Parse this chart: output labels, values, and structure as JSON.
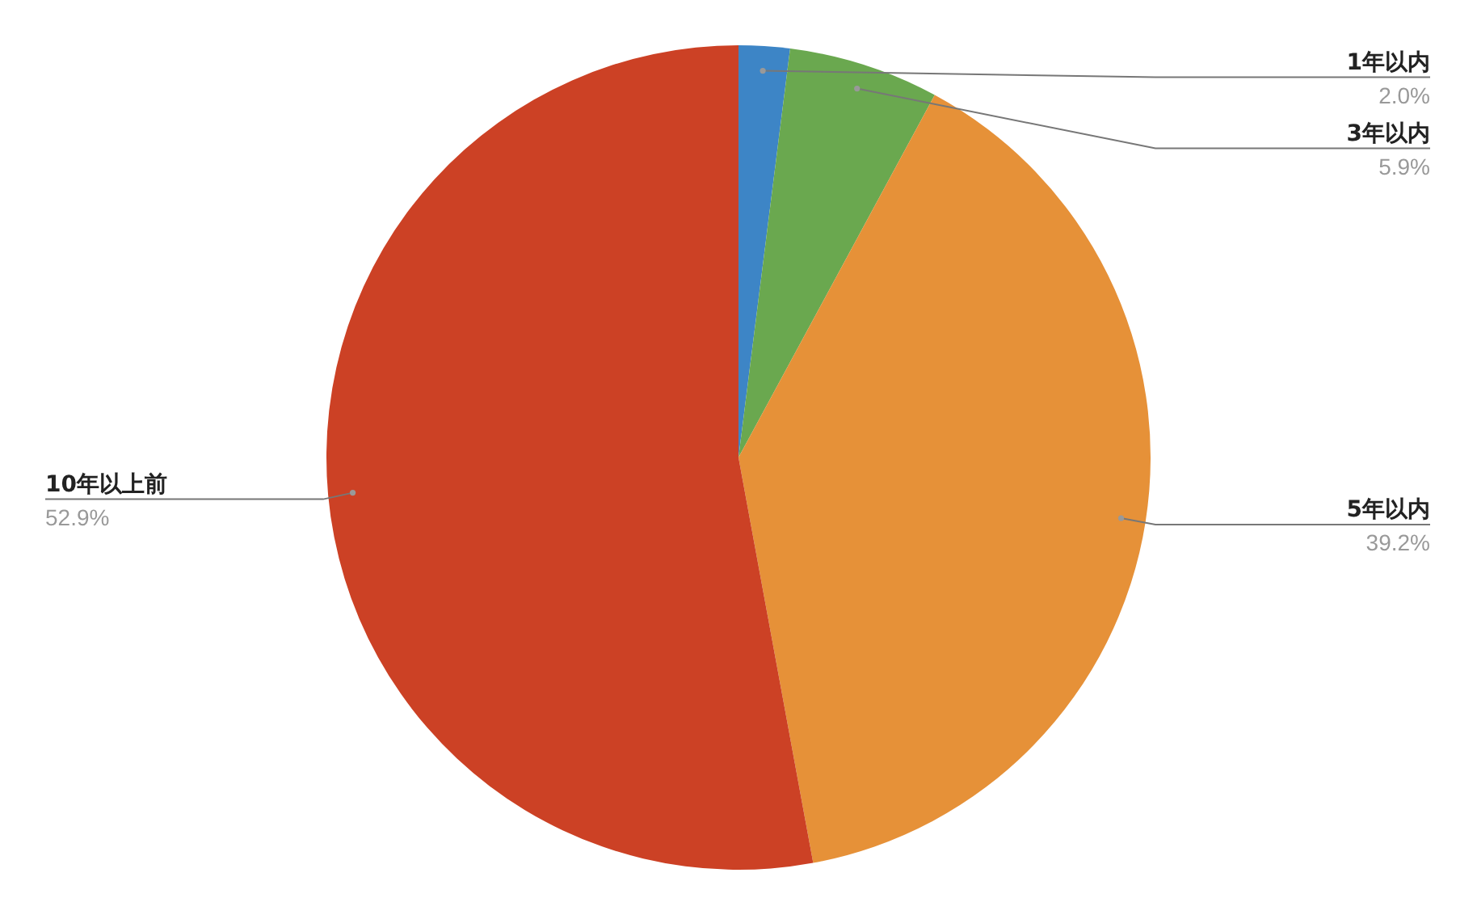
{
  "chart_data": {
    "type": "pie",
    "categories": [
      "1年以内",
      "3年以内",
      "5年以内",
      "10年以上前"
    ],
    "values": [
      2.0,
      5.9,
      39.2,
      52.9
    ],
    "colors": [
      "#3d85c6",
      "#6aa84f",
      "#e69138",
      "#cc4125"
    ],
    "value_labels": [
      "2.0%",
      "5.9%",
      "39.2%",
      "52.9%"
    ],
    "legend": false
  }
}
